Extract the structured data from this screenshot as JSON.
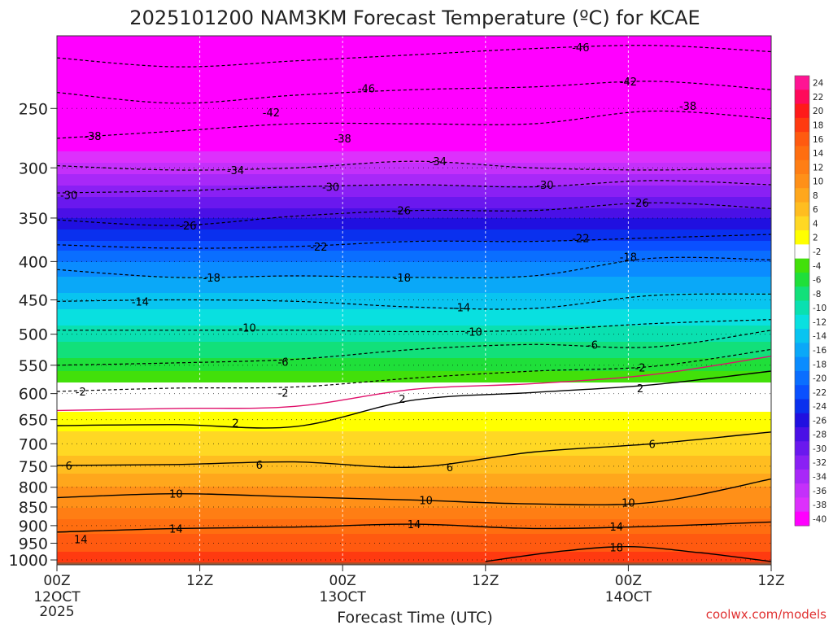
{
  "chart_data": {
    "type": "heatmap",
    "title": "2025101200 NAM3KM Forecast Temperature (ºC) for KCAE",
    "xlabel": "Forecast Time (UTC)",
    "ylabel": "",
    "x_ticks": [
      {
        "hour": 0,
        "label": "00Z",
        "sub": "12OCT",
        "sub2": "2025"
      },
      {
        "hour": 12,
        "label": "12Z",
        "sub": "",
        "sub2": ""
      },
      {
        "hour": 24,
        "label": "00Z",
        "sub": "13OCT",
        "sub2": ""
      },
      {
        "hour": 36,
        "label": "12Z",
        "sub": "",
        "sub2": ""
      },
      {
        "hour": 48,
        "label": "00Z",
        "sub": "14OCT",
        "sub2": ""
      },
      {
        "hour": 60,
        "label": "12Z",
        "sub": "",
        "sub2": ""
      }
    ],
    "xlim": [
      0,
      60
    ],
    "y_ticks": [
      250,
      300,
      350,
      400,
      450,
      500,
      550,
      600,
      650,
      700,
      750,
      800,
      850,
      900,
      950,
      1000
    ],
    "ylim": [
      1015,
      200
    ],
    "y_units": "hPa (log-pressure)",
    "surface_pressure": 1008,
    "colorbar": {
      "labels": [
        "24",
        "22",
        "20",
        "18",
        "16",
        "14",
        "12",
        "10",
        "8",
        "6",
        "4",
        "2",
        "-2",
        "-4",
        "-6",
        "-8",
        "-10",
        "-12",
        "-14",
        "-16",
        "-18",
        "-20",
        "-22",
        "-24",
        "-26",
        "-28",
        "-30",
        "-32",
        "-34",
        "-36",
        "-38",
        "-40"
      ],
      "colors": [
        "#ff1493",
        "#ff0a5a",
        "#ff1a1a",
        "#ff3a10",
        "#ff5a10",
        "#ff6e10",
        "#ff7e14",
        "#ff9018",
        "#ffa71c",
        "#ffbd20",
        "#ffd824",
        "#ffff00",
        "#ffffff",
        "#42e00a",
        "#1fdf3a",
        "#12e07a",
        "#0ae0b0",
        "#09e0e0",
        "#08c4f0",
        "#0aa8f8",
        "#0a8cff",
        "#0a6eff",
        "#0a50ff",
        "#0a30ee",
        "#2010e0",
        "#4a10e6",
        "#6a18ee",
        "#8a20f4",
        "#a828f8",
        "#c430fa",
        "#dd30fc",
        "#ff00ff"
      ]
    },
    "temperature_profile": [
      {
        "p": 200,
        "t": -52
      },
      {
        "p": 250,
        "t": -45
      },
      {
        "p": 300,
        "t": -35
      },
      {
        "p": 350,
        "t": -26
      },
      {
        "p": 400,
        "t": -18
      },
      {
        "p": 450,
        "t": -13
      },
      {
        "p": 500,
        "t": -9
      },
      {
        "p": 550,
        "t": -5
      },
      {
        "p": 600,
        "t": 0
      },
      {
        "p": 650,
        "t": 3
      },
      {
        "p": 700,
        "t": 5
      },
      {
        "p": 750,
        "t": 7
      },
      {
        "p": 800,
        "t": 10
      },
      {
        "p": 850,
        "t": 12
      },
      {
        "p": 900,
        "t": 15
      },
      {
        "p": 950,
        "t": 17
      },
      {
        "p": 1000,
        "t": 19
      }
    ],
    "contour_lines": [
      {
        "label": "-46",
        "style": "dashed",
        "color": "#000000",
        "points": [
          [
            0,
            214
          ],
          [
            10,
            220
          ],
          [
            20,
            216
          ],
          [
            30,
            212
          ],
          [
            40,
            208
          ],
          [
            50,
            206
          ],
          [
            60,
            210
          ]
        ],
        "label_at": [
          [
            44,
            207
          ],
          [
            26,
            235
          ]
        ]
      },
      {
        "label": "-42",
        "style": "dashed",
        "color": "#000000",
        "points": [
          [
            0,
            238
          ],
          [
            10,
            246
          ],
          [
            20,
            240
          ],
          [
            30,
            236
          ],
          [
            40,
            234
          ],
          [
            50,
            230
          ],
          [
            60,
            236
          ]
        ],
        "label_at": [
          [
            48,
            230
          ],
          [
            18,
            253
          ]
        ]
      },
      {
        "label": "-38",
        "style": "dashed",
        "color": "#000000",
        "points": [
          [
            0,
            274
          ],
          [
            10,
            268
          ],
          [
            20,
            262
          ],
          [
            30,
            262
          ],
          [
            40,
            262
          ],
          [
            50,
            252
          ],
          [
            60,
            258
          ]
        ],
        "label_at": [
          [
            3,
            272
          ],
          [
            24,
            274
          ],
          [
            53,
            248
          ]
        ]
      },
      {
        "label": "-34",
        "style": "dashed",
        "color": "#000000",
        "points": [
          [
            0,
            298
          ],
          [
            10,
            302
          ],
          [
            20,
            300
          ],
          [
            30,
            294
          ],
          [
            40,
            300
          ],
          [
            50,
            302
          ],
          [
            60,
            300
          ]
        ],
        "label_at": [
          [
            15,
            302
          ],
          [
            32,
            294
          ]
        ]
      },
      {
        "label": "-30",
        "style": "dashed",
        "color": "#000000",
        "points": [
          [
            0,
            324
          ],
          [
            10,
            322
          ],
          [
            20,
            318
          ],
          [
            30,
            316
          ],
          [
            40,
            318
          ],
          [
            50,
            312
          ],
          [
            60,
            316
          ]
        ],
        "label_at": [
          [
            1,
            326
          ],
          [
            23,
            318
          ],
          [
            41,
            316
          ]
        ]
      },
      {
        "label": "-26",
        "style": "dashed",
        "color": "#000000",
        "points": [
          [
            0,
            352
          ],
          [
            10,
            358
          ],
          [
            20,
            348
          ],
          [
            30,
            342
          ],
          [
            40,
            342
          ],
          [
            50,
            334
          ],
          [
            60,
            340
          ]
        ],
        "label_at": [
          [
            11,
            358
          ],
          [
            29,
            342
          ],
          [
            49,
            334
          ]
        ]
      },
      {
        "label": "-22",
        "style": "dashed",
        "color": "#000000",
        "points": [
          [
            0,
            380
          ],
          [
            10,
            384
          ],
          [
            20,
            382
          ],
          [
            30,
            376
          ],
          [
            40,
            376
          ],
          [
            50,
            372
          ],
          [
            60,
            368
          ]
        ],
        "label_at": [
          [
            22,
            382
          ],
          [
            44,
            372
          ]
        ]
      },
      {
        "label": "-18",
        "style": "dashed",
        "color": "#000000",
        "points": [
          [
            0,
            410
          ],
          [
            10,
            420
          ],
          [
            20,
            418
          ],
          [
            30,
            420
          ],
          [
            40,
            418
          ],
          [
            50,
            396
          ],
          [
            60,
            398
          ]
        ],
        "label_at": [
          [
            13,
            420
          ],
          [
            29,
            420
          ],
          [
            48,
            394
          ]
        ]
      },
      {
        "label": "-14",
        "style": "dashed",
        "color": "#000000",
        "points": [
          [
            0,
            452
          ],
          [
            10,
            450
          ],
          [
            20,
            452
          ],
          [
            30,
            460
          ],
          [
            40,
            462
          ],
          [
            50,
            444
          ],
          [
            60,
            442
          ]
        ],
        "label_at": [
          [
            7,
            452
          ],
          [
            34,
            460
          ]
        ]
      },
      {
        "label": "-10",
        "style": "dashed",
        "color": "#000000",
        "points": [
          [
            0,
            494
          ],
          [
            10,
            494
          ],
          [
            20,
            494
          ],
          [
            30,
            496
          ],
          [
            40,
            494
          ],
          [
            50,
            484
          ],
          [
            60,
            478
          ]
        ],
        "label_at": [
          [
            16,
            490
          ],
          [
            35,
            496
          ]
        ]
      },
      {
        "label": "-6",
        "style": "dashed",
        "color": "#000000",
        "points": [
          [
            0,
            550
          ],
          [
            10,
            546
          ],
          [
            20,
            540
          ],
          [
            30,
            524
          ],
          [
            40,
            516
          ],
          [
            50,
            520
          ],
          [
            60,
            494
          ]
        ],
        "label_at": [
          [
            19,
            544
          ],
          [
            45,
            516
          ]
        ]
      },
      {
        "label": "-2",
        "style": "dashed",
        "color": "#000000",
        "points": [
          [
            0,
            596
          ],
          [
            10,
            590
          ],
          [
            20,
            588
          ],
          [
            30,
            572
          ],
          [
            40,
            560
          ],
          [
            50,
            552
          ],
          [
            60,
            524
          ]
        ],
        "label_at": [
          [
            2,
            596
          ],
          [
            19,
            598
          ],
          [
            49,
            554
          ]
        ]
      },
      {
        "label": "0",
        "style": "solid",
        "color": "#e0106a",
        "points": [
          [
            0,
            632
          ],
          [
            10,
            628
          ],
          [
            20,
            624
          ],
          [
            30,
            592
          ],
          [
            40,
            582
          ],
          [
            50,
            566
          ],
          [
            60,
            535
          ]
        ],
        "label_at": []
      },
      {
        "label": "2",
        "style": "solid",
        "color": "#000000",
        "points": [
          [
            0,
            662
          ],
          [
            10,
            660
          ],
          [
            20,
            664
          ],
          [
            30,
            612
          ],
          [
            40,
            598
          ],
          [
            50,
            584
          ],
          [
            60,
            560
          ]
        ],
        "label_at": [
          [
            15,
            656
          ],
          [
            29,
            610
          ],
          [
            49,
            590
          ]
        ]
      },
      {
        "label": "6",
        "style": "solid",
        "color": "#000000",
        "points": [
          [
            0,
            748
          ],
          [
            10,
            746
          ],
          [
            20,
            740
          ],
          [
            30,
            752
          ],
          [
            40,
            718
          ],
          [
            50,
            700
          ],
          [
            60,
            675
          ]
        ],
        "label_at": [
          [
            1,
            748
          ],
          [
            17,
            746
          ],
          [
            33,
            752
          ],
          [
            50,
            700
          ]
        ]
      },
      {
        "label": "10",
        "style": "solid",
        "color": "#000000",
        "points": [
          [
            0,
            826
          ],
          [
            10,
            816
          ],
          [
            20,
            824
          ],
          [
            30,
            832
          ],
          [
            40,
            842
          ],
          [
            50,
            838
          ],
          [
            60,
            780
          ]
        ],
        "label_at": [
          [
            10,
            816
          ],
          [
            31,
            832
          ],
          [
            48,
            838
          ]
        ]
      },
      {
        "label": "14",
        "style": "solid",
        "color": "#000000",
        "points": [
          [
            0,
            918
          ],
          [
            10,
            908
          ],
          [
            20,
            904
          ],
          [
            30,
            896
          ],
          [
            40,
            908
          ],
          [
            50,
            902
          ],
          [
            60,
            890
          ]
        ],
        "label_at": [
          [
            10,
            908
          ],
          [
            30,
            896
          ],
          [
            47,
            902
          ],
          [
            2,
            938
          ]
        ]
      },
      {
        "label": "18",
        "style": "solid",
        "color": "#000000",
        "points": [
          [
            36,
            1005
          ],
          [
            42,
            975
          ],
          [
            48,
            960
          ],
          [
            54,
            978
          ],
          [
            60,
            1005
          ]
        ],
        "label_at": [
          [
            47,
            962
          ]
        ]
      }
    ],
    "grid": true
  },
  "credit": "coolwx.com/models",
  "ground_color": "#a0522d"
}
